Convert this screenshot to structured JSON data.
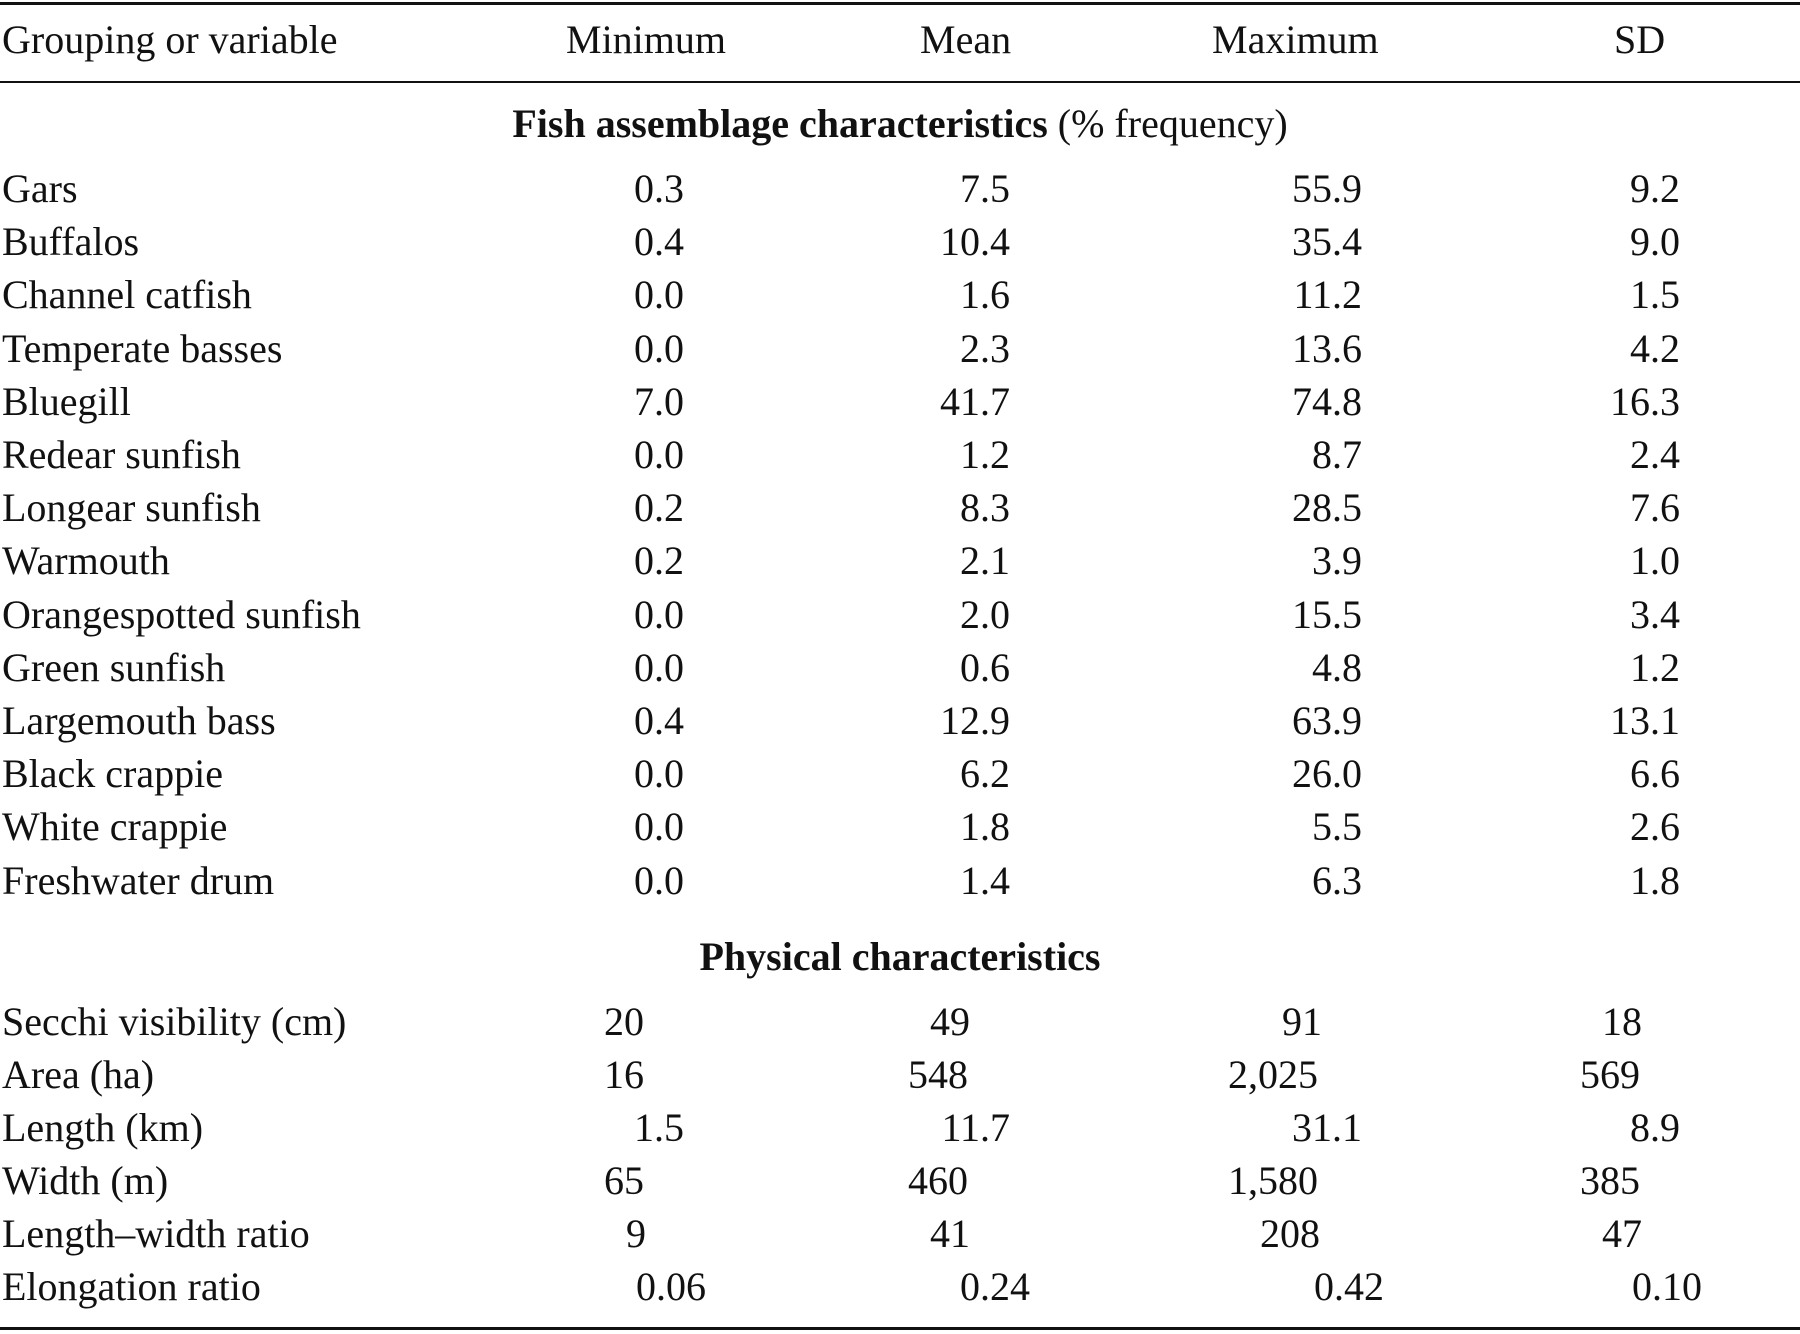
{
  "headers": [
    "Grouping or variable",
    "Minimum",
    "Mean",
    "Maximum",
    "SD"
  ],
  "sections": [
    {
      "title_bold": "Fish assemblage characteristics",
      "title_normal": " (% frequency)",
      "rows": [
        {
          "label": "Gars",
          "min": "0.3",
          "mean": "7.5",
          "max": "55.9",
          "sd": "9.2"
        },
        {
          "label": "Buffalos",
          "min": "0.4",
          "mean": "10.4",
          "max": "35.4",
          "sd": "9.0"
        },
        {
          "label": "Channel catfish",
          "min": "0.0",
          "mean": "1.6",
          "max": "11.2",
          "sd": "1.5"
        },
        {
          "label": "Temperate basses",
          "min": "0.0",
          "mean": "2.3",
          "max": "13.6",
          "sd": "4.2"
        },
        {
          "label": "Bluegill",
          "min": "7.0",
          "mean": "41.7",
          "max": "74.8",
          "sd": "16.3"
        },
        {
          "label": "Redear sunfish",
          "min": "0.0",
          "mean": "1.2",
          "max": "8.7",
          "sd": "2.4"
        },
        {
          "label": "Longear sunfish",
          "min": "0.2",
          "mean": "8.3",
          "max": "28.5",
          "sd": "7.6"
        },
        {
          "label": "Warmouth",
          "min": "0.2",
          "mean": "2.1",
          "max": "3.9",
          "sd": "1.0"
        },
        {
          "label": "Orangespotted sunfish",
          "min": "0.0",
          "mean": "2.0",
          "max": "15.5",
          "sd": "3.4"
        },
        {
          "label": "Green sunfish",
          "min": "0.0",
          "mean": "0.6",
          "max": "4.8",
          "sd": "1.2"
        },
        {
          "label": "Largemouth bass",
          "min": "0.4",
          "mean": "12.9",
          "max": "63.9",
          "sd": "13.1"
        },
        {
          "label": "Black crappie",
          "min": "0.0",
          "mean": "6.2",
          "max": "26.0",
          "sd": "6.6"
        },
        {
          "label": "White crappie",
          "min": "0.0",
          "mean": "1.8",
          "max": "5.5",
          "sd": "2.6"
        },
        {
          "label": "Freshwater drum",
          "min": "0.0",
          "mean": "1.4",
          "max": "6.3",
          "sd": "1.8"
        }
      ]
    },
    {
      "title_bold": "Physical characteristics",
      "title_normal": "",
      "rows": [
        {
          "label": "Secchi visibility (cm)",
          "min": "20",
          "mean": "49",
          "max": "91",
          "sd": "18"
        },
        {
          "label": "Area (ha)",
          "min": "16",
          "mean": "548",
          "max": "2,025",
          "sd": "569"
        },
        {
          "label": "Length (km)",
          "min": "1.5",
          "mean": "11.7",
          "max": "31.1",
          "sd": "8.9"
        },
        {
          "label": "Width (m)",
          "min": "65",
          "mean": "460",
          "max": "1,580",
          "sd": "385"
        },
        {
          "label": "Length–width ratio",
          "min": "9",
          "mean": "41",
          "max": "208",
          "sd": "47"
        },
        {
          "label": "Elongation ratio",
          "min": "0.06",
          "mean": "0.24",
          "max": "0.42",
          "sd": "0.10"
        }
      ]
    }
  ]
}
